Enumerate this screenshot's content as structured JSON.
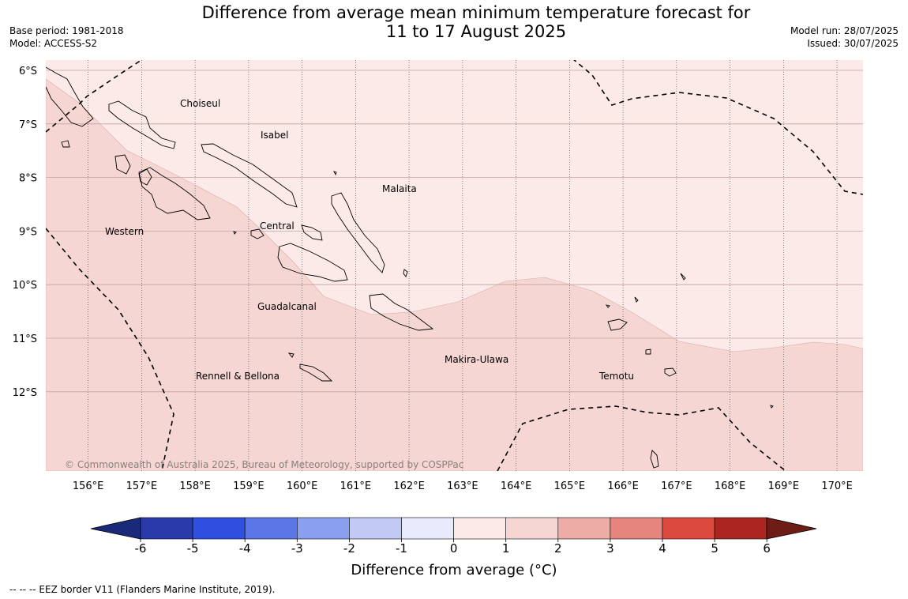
{
  "title": {
    "line1": "Difference from average mean minimum temperature forecast for",
    "line2": "11 to 17 August 2025"
  },
  "meta_left": {
    "base_period": "Base period: 1981-2018",
    "model": "Model: ACCESS-S2"
  },
  "meta_right": {
    "model_run": "Model run: 28/07/2025",
    "issued": "Issued: 30/07/2025"
  },
  "map": {
    "lat_labels": [
      "6°S",
      "7°S",
      "8°S",
      "9°S",
      "10°S",
      "11°S",
      "12°S"
    ],
    "lon_labels": [
      "156°E",
      "157°E",
      "158°E",
      "159°E",
      "160°E",
      "161°E",
      "162°E",
      "163°E",
      "164°E",
      "165°E",
      "166°E",
      "167°E",
      "168°E",
      "169°E",
      "170°E"
    ],
    "provinces": [
      {
        "name": "Choiseul"
      },
      {
        "name": "Isabel"
      },
      {
        "name": "Malaita"
      },
      {
        "name": "Central"
      },
      {
        "name": "Western"
      },
      {
        "name": "Guadalcanal"
      },
      {
        "name": "Makira-Ulawa"
      },
      {
        "name": "Rennell & Bellona"
      },
      {
        "name": "Temotu"
      }
    ],
    "copyright": "© Commonwealth of Australia 2025, Bureau of Meteorology, supported by COSPPac",
    "anomaly_regions": [
      {
        "range": "0 to 1",
        "color": "#fbeae8"
      },
      {
        "range": "1 to 2",
        "color": "#f5d6d3"
      }
    ]
  },
  "colorbar": {
    "ticks": [
      "-6",
      "-5",
      "-4",
      "-3",
      "-2",
      "-1",
      "0",
      "1",
      "2",
      "3",
      "4",
      "5",
      "6"
    ],
    "colors": [
      "#2a3aaa",
      "#2f4fe0",
      "#5b76e6",
      "#8a9fef",
      "#c1c9f5",
      "#e8ebfb",
      "#fbeae8",
      "#f5d6d3",
      "#eeaca6",
      "#e6857d",
      "#dc4a3f",
      "#ab2620"
    ],
    "under_color": "#1a2a78",
    "over_color": "#6e1c16",
    "label": "Difference from average (°C)"
  },
  "footnote": "--  --  -- EEZ border V11 (Flanders Marine Institute, 2019)."
}
